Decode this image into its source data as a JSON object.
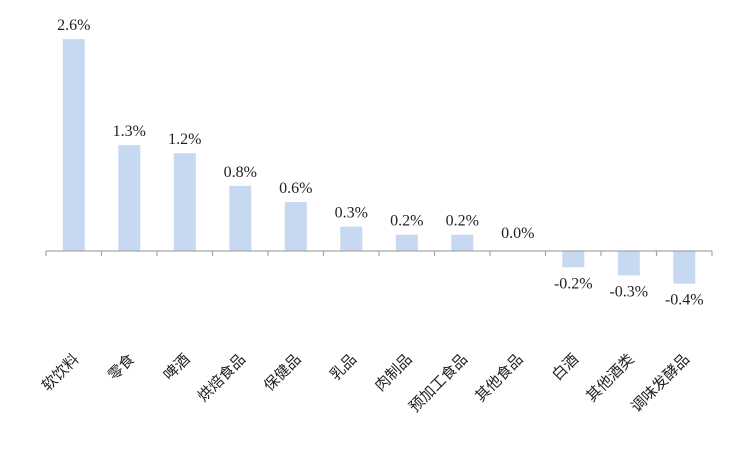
{
  "chart_data": {
    "type": "bar",
    "title": "",
    "xlabel": "",
    "ylabel": "",
    "ylim": [
      -0.8,
      2.6
    ],
    "grid": false,
    "legend": "none",
    "bar_color": "#C6D9F1",
    "axis_color": "#A6A6A6",
    "categories": [
      "软饮料",
      "零食",
      "啤酒",
      "烘焙食品",
      "保健品",
      "乳品",
      "肉制品",
      "预加工食品",
      "其他食品",
      "白酒",
      "其他酒类",
      "调味发酵品"
    ],
    "values": [
      2.6,
      1.3,
      1.2,
      0.8,
      0.6,
      0.3,
      0.2,
      0.2,
      0.0,
      -0.2,
      -0.3,
      -0.4
    ],
    "value_labels": [
      "2.6%",
      "1.3%",
      "1.2%",
      "0.8%",
      "0.6%",
      "0.3%",
      "0.2%",
      "0.2%",
      "0.0%",
      "-0.2%",
      "-0.3%",
      "-0.4%"
    ]
  }
}
